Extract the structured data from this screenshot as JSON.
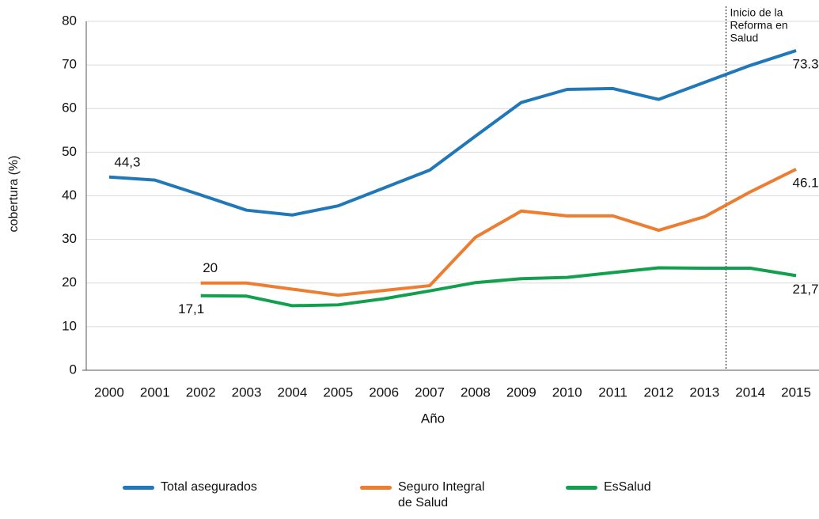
{
  "chart_data": {
    "type": "line",
    "y_label": "cobertura (%)",
    "x_label": "Año",
    "categories": [
      "2000",
      "2001",
      "2002",
      "2003",
      "2004",
      "2005",
      "2006",
      "2007",
      "2008",
      "2009",
      "2010",
      "2011",
      "2012",
      "2013",
      "2014",
      "2015"
    ],
    "series": [
      {
        "name": "Total asegurados",
        "color": "#2178b8",
        "values": [
          44.3,
          43.6,
          40.2,
          36.7,
          35.6,
          37.7,
          41.8,
          45.9,
          53.7,
          61.4,
          64.4,
          64.6,
          62.1,
          66.0,
          69.9,
          73.3
        ],
        "value_labels": [
          "44,3",
          null,
          null,
          null,
          null,
          null,
          null,
          null,
          null,
          null,
          null,
          null,
          null,
          null,
          null,
          "73.3"
        ]
      },
      {
        "name": "Seguro Integral de Salud",
        "color": "#ed7d31",
        "values": [
          null,
          null,
          20,
          20,
          18.6,
          17.2,
          18.3,
          19.4,
          30.5,
          36.5,
          35.4,
          35.4,
          32.1,
          35.2,
          40.9,
          46.1
        ],
        "value_labels": [
          null,
          null,
          "20",
          null,
          null,
          null,
          null,
          null,
          null,
          null,
          null,
          null,
          null,
          null,
          null,
          "46.1"
        ]
      },
      {
        "name": "EsSalud",
        "color": "#12a04f",
        "values": [
          null,
          null,
          17.1,
          17.0,
          14.8,
          15.0,
          16.4,
          18.2,
          20.1,
          21.0,
          21.3,
          22.4,
          23.5,
          23.4,
          23.4,
          21.7
        ],
        "value_labels": [
          null,
          null,
          "17,1",
          null,
          null,
          null,
          null,
          null,
          null,
          null,
          null,
          null,
          null,
          null,
          null,
          "21,7"
        ]
      }
    ],
    "ylim": [
      0,
      80
    ],
    "yticks": [
      0,
      10,
      20,
      30,
      40,
      50,
      60,
      70,
      80
    ],
    "grid": true,
    "annotation": {
      "at": "2013",
      "text": [
        "Inicio de la",
        "Reforma en",
        "Salud"
      ]
    }
  }
}
